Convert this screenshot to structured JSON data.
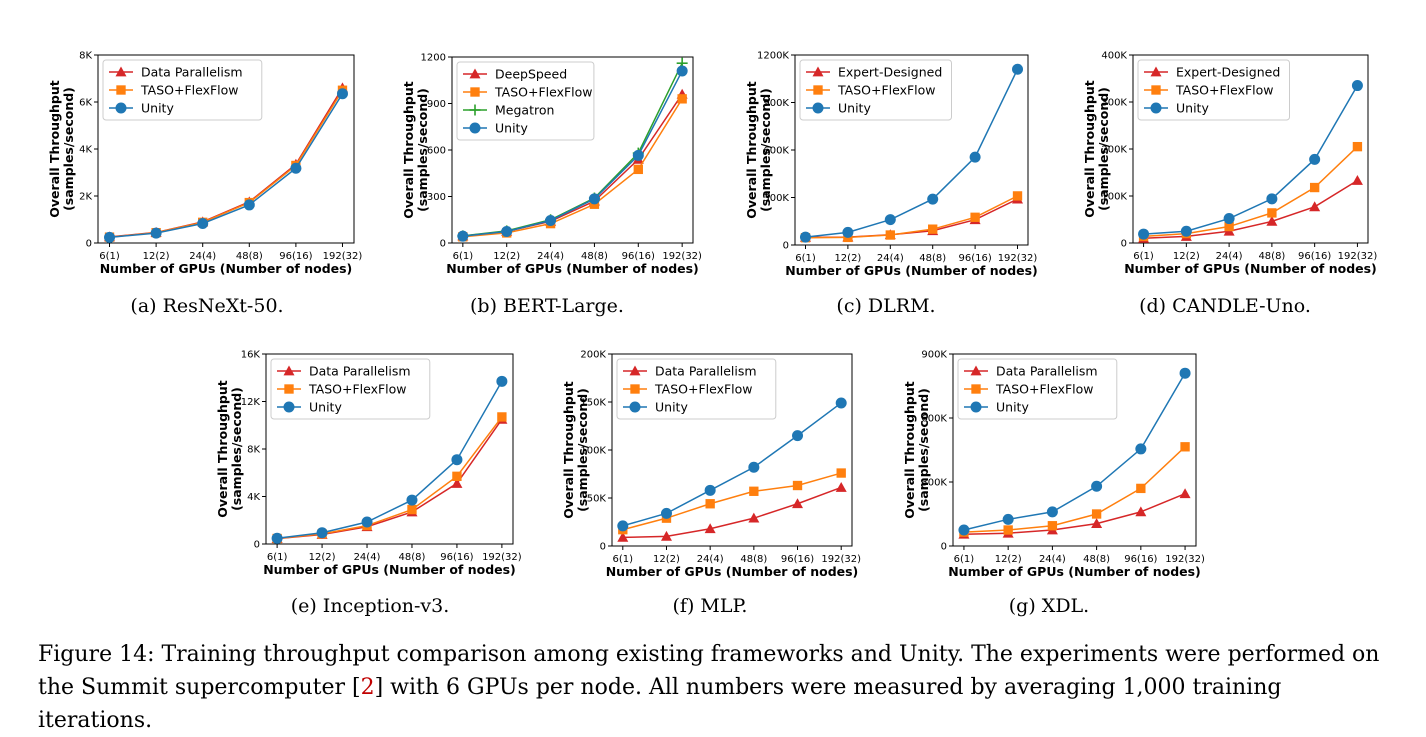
{
  "colors": {
    "red": "#d62728",
    "orange": "#ff7f0e",
    "blue": "#1f77b4",
    "green": "#2ca02c"
  },
  "figure_caption": {
    "before": "Figure 14: Training throughput comparison among existing frameworks and Unity. The experiments were performed on the Summit supercomputer [",
    "ref": "2",
    "after": "] with 6 GPUs per node. All numbers were measured by averaging 1,000 training iterations."
  },
  "chart_data": [
    {
      "type": "line",
      "caption": "(a) ResNeXt-50.",
      "xlabel": "Number of GPUs (Number of nodes)",
      "ylabel": [
        "Overall Throughput",
        "(samples/second)"
      ],
      "categories": [
        "6(1)",
        "12(2)",
        "24(4)",
        "48(8)",
        "96(16)",
        "192(32)"
      ],
      "ylim": [
        0,
        8000
      ],
      "yticks": [
        0,
        2000,
        4000,
        6000,
        8000
      ],
      "ytick_labels": [
        "0",
        "2K",
        "4K",
        "6K",
        "8K"
      ],
      "legend_position": "top-left",
      "series": [
        {
          "name": "Data Parallelism",
          "color": "#d62728",
          "marker": "triangle",
          "values": [
            260,
            450,
            900,
            1750,
            3350,
            6600
          ]
        },
        {
          "name": "TASO+FlexFlow",
          "color": "#ff7f0e",
          "marker": "square",
          "values": [
            250,
            440,
            880,
            1720,
            3300,
            6500
          ]
        },
        {
          "name": "Unity",
          "color": "#1f77b4",
          "marker": "circle",
          "values": [
            240,
            420,
            830,
            1620,
            3180,
            6350
          ]
        }
      ]
    },
    {
      "type": "line",
      "caption": "(b) BERT-Large.",
      "xlabel": "Number of GPUs (Number of nodes)",
      "ylabel": [
        "Overall Throughput",
        "(samples/second)"
      ],
      "categories": [
        "6(1)",
        "12(2)",
        "24(4)",
        "48(8)",
        "96(16)",
        "192(32)"
      ],
      "ylim": [
        0,
        1200
      ],
      "yticks": [
        0,
        300,
        600,
        900,
        1200
      ],
      "ytick_labels": [
        "0",
        "300",
        "600",
        "900",
        "1200"
      ],
      "legend_position": "top-left",
      "series": [
        {
          "name": "DeepSpeed",
          "color": "#d62728",
          "marker": "triangle",
          "values": [
            45,
            75,
            140,
            270,
            540,
            960
          ]
        },
        {
          "name": "TASO+FlexFlow",
          "color": "#ff7f0e",
          "marker": "square",
          "values": [
            40,
            65,
            125,
            250,
            475,
            930
          ]
        },
        {
          "name": "Megatron",
          "color": "#2ca02c",
          "marker": "plus",
          "values": [
            46,
            78,
            150,
            290,
            580,
            1160
          ]
        },
        {
          "name": "Unity",
          "color": "#1f77b4",
          "marker": "circle",
          "values": [
            44,
            74,
            145,
            285,
            565,
            1110
          ]
        }
      ]
    },
    {
      "type": "line",
      "caption": "(c) DLRM.",
      "xlabel": "Number of GPUs (Number of nodes)",
      "ylabel": [
        "Overall Throughput",
        "(samples/second)"
      ],
      "categories": [
        "6(1)",
        "12(2)",
        "24(4)",
        "48(8)",
        "96(16)",
        "192(32)"
      ],
      "ylim": [
        0,
        1200000
      ],
      "yticks": [
        0,
        300000,
        600000,
        900000,
        1200000
      ],
      "ytick_labels": [
        "0",
        "300K",
        "600K",
        "900K",
        "1200K"
      ],
      "legend_position": "top-left",
      "series": [
        {
          "name": "Expert-Designed",
          "color": "#d62728",
          "marker": "triangle",
          "values": [
            48000,
            50000,
            65000,
            90000,
            160000,
            290000
          ]
        },
        {
          "name": "TASO+FlexFlow",
          "color": "#ff7f0e",
          "marker": "square",
          "values": [
            46000,
            48000,
            63000,
            100000,
            175000,
            310000
          ]
        },
        {
          "name": "Unity",
          "color": "#1f77b4",
          "marker": "circle",
          "values": [
            50000,
            80000,
            160000,
            290000,
            555000,
            1110000
          ]
        }
      ]
    },
    {
      "type": "line",
      "caption": "(d) CANDLE-Uno.",
      "xlabel": "Number of GPUs (Number of nodes)",
      "ylabel": [
        "Overall Throughput",
        "(samples/second)"
      ],
      "categories": [
        "6(1)",
        "12(2)",
        "24(4)",
        "48(8)",
        "96(16)",
        "192(32)"
      ],
      "ylim": [
        0,
        400000
      ],
      "yticks": [
        0,
        100000,
        200000,
        300000,
        400000
      ],
      "ytick_labels": [
        "0",
        "100K",
        "200K",
        "300K",
        "400K"
      ],
      "legend_position": "top-left",
      "series": [
        {
          "name": "Expert-Designed",
          "color": "#d62728",
          "marker": "triangle",
          "values": [
            10000,
            14000,
            25000,
            46000,
            77000,
            133000
          ]
        },
        {
          "name": "TASO+FlexFlow",
          "color": "#ff7f0e",
          "marker": "square",
          "values": [
            14000,
            20000,
            35000,
            64000,
            118000,
            205000
          ]
        },
        {
          "name": "Unity",
          "color": "#1f77b4",
          "marker": "circle",
          "values": [
            19000,
            25000,
            52000,
            94000,
            178000,
            335000
          ]
        }
      ]
    },
    {
      "type": "line",
      "caption": "(e) Inception-v3.",
      "xlabel": "Number of GPUs (Number of nodes)",
      "ylabel": [
        "Overall Throughput",
        "(samples/second)"
      ],
      "categories": [
        "6(1)",
        "12(2)",
        "24(4)",
        "48(8)",
        "96(16)",
        "192(32)"
      ],
      "ylim": [
        0,
        16000
      ],
      "yticks": [
        0,
        4000,
        8000,
        12000,
        16000
      ],
      "ytick_labels": [
        "0",
        "4K",
        "8K",
        "12K",
        "16K"
      ],
      "legend_position": "top-left",
      "series": [
        {
          "name": "Data Parallelism",
          "color": "#d62728",
          "marker": "triangle",
          "values": [
            450,
            800,
            1450,
            2700,
            5100,
            10500
          ]
        },
        {
          "name": "TASO+FlexFlow",
          "color": "#ff7f0e",
          "marker": "square",
          "values": [
            460,
            850,
            1550,
            2900,
            5700,
            10700
          ]
        },
        {
          "name": "Unity",
          "color": "#1f77b4",
          "marker": "circle",
          "values": [
            480,
            950,
            1850,
            3700,
            7100,
            13700
          ]
        }
      ]
    },
    {
      "type": "line",
      "caption": "(f) MLP.",
      "xlabel": "Number of GPUs (Number of nodes)",
      "ylabel": [
        "Overall Throughput",
        "(samples/second)"
      ],
      "categories": [
        "6(1)",
        "12(2)",
        "24(4)",
        "48(8)",
        "96(16)",
        "192(32)"
      ],
      "ylim": [
        0,
        200000
      ],
      "yticks": [
        0,
        50000,
        100000,
        150000,
        200000
      ],
      "ytick_labels": [
        "0",
        "50K",
        "100K",
        "150K",
        "200K"
      ],
      "legend_position": "top-left",
      "series": [
        {
          "name": "Data Parallelism",
          "color": "#d62728",
          "marker": "triangle",
          "values": [
            9000,
            10000,
            18000,
            29000,
            44000,
            61000
          ]
        },
        {
          "name": "TASO+FlexFlow",
          "color": "#ff7f0e",
          "marker": "square",
          "values": [
            17000,
            29000,
            44000,
            57000,
            63000,
            76000
          ]
        },
        {
          "name": "Unity",
          "color": "#1f77b4",
          "marker": "circle",
          "values": [
            21000,
            34000,
            58000,
            82000,
            115000,
            149000
          ]
        }
      ]
    },
    {
      "type": "line",
      "caption": "(g) XDL.",
      "xlabel": "Number of GPUs (Number of nodes)",
      "ylabel": [
        "Overall Throughput",
        "(samples/second)"
      ],
      "categories": [
        "6(1)",
        "12(2)",
        "24(4)",
        "48(8)",
        "96(16)",
        "192(32)"
      ],
      "ylim": [
        0,
        900000
      ],
      "yticks": [
        0,
        300000,
        600000,
        900000
      ],
      "ytick_labels": [
        "0",
        "300K",
        "600K",
        "900K"
      ],
      "legend_position": "top-left",
      "series": [
        {
          "name": "Data Parallelism",
          "color": "#d62728",
          "marker": "triangle",
          "values": [
            55000,
            60000,
            75000,
            105000,
            160000,
            245000
          ]
        },
        {
          "name": "TASO+FlexFlow",
          "color": "#ff7f0e",
          "marker": "square",
          "values": [
            65000,
            75000,
            95000,
            150000,
            270000,
            465000
          ]
        },
        {
          "name": "Unity",
          "color": "#1f77b4",
          "marker": "circle",
          "values": [
            75000,
            125000,
            160000,
            280000,
            455000,
            810000
          ]
        }
      ]
    }
  ]
}
